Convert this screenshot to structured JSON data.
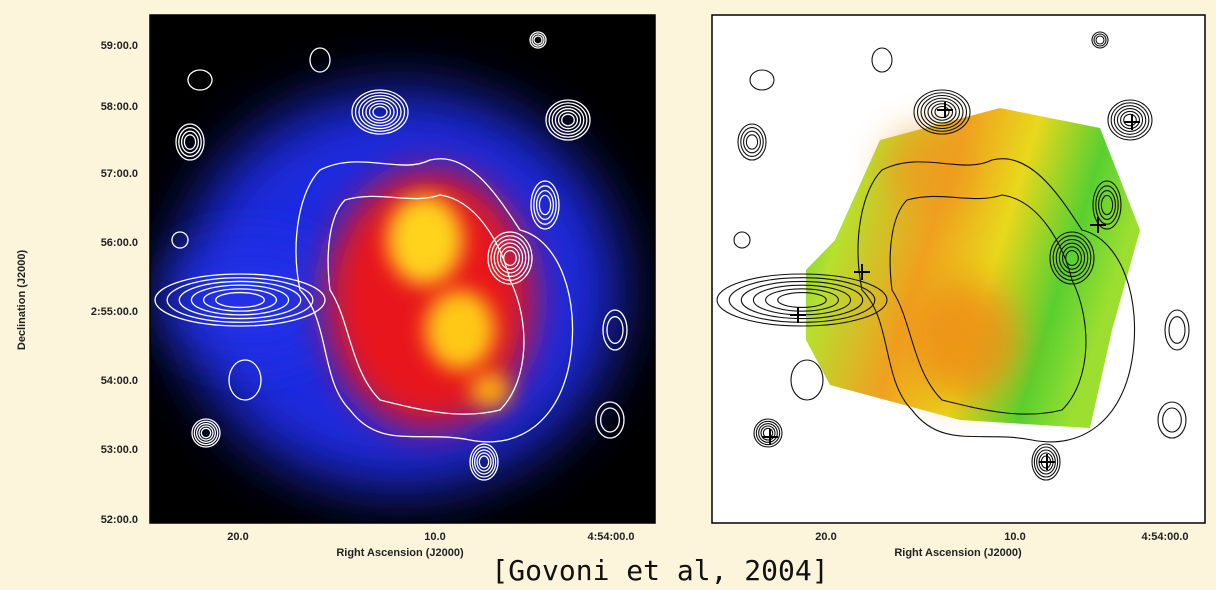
{
  "left_panel": {
    "y_axis_title": "Declination (J2000)",
    "y_ticks": [
      "59:00.0",
      "58:00.0",
      "57:00.0",
      "56:00.0",
      "2:55:00.0",
      "54:00.0",
      "53:00.0",
      "52:00.0"
    ],
    "x_ticks": [
      "20.0",
      "10.0",
      "4:54:00.0"
    ],
    "x_axis_title": "Right Ascension (J2000)"
  },
  "right_panel": {
    "x_ticks": [
      "20.0",
      "10.0",
      "4:54:00.0"
    ],
    "x_axis_title": "Right Ascension (J2000)"
  },
  "caption": "[Govoni et al, 2004]"
}
